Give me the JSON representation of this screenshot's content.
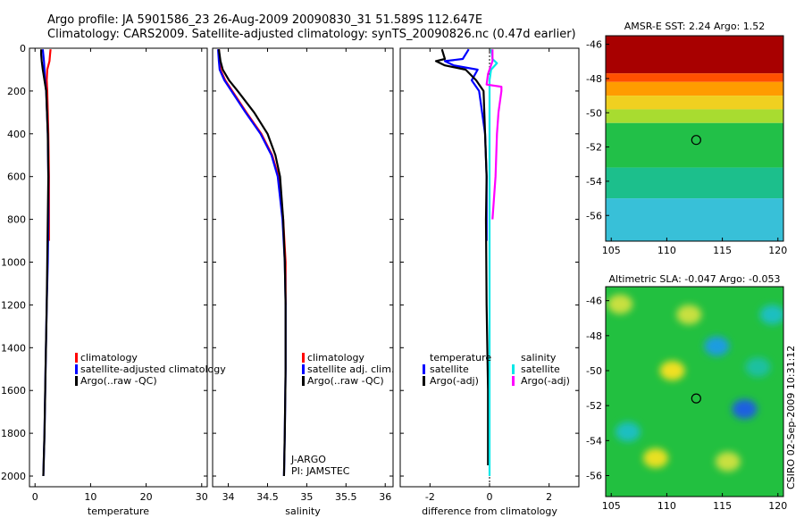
{
  "header": {
    "line1": "Argo profile: JA 5901586_23 26-Aug-2009 20090830_31 51.589S 112.647E",
    "line2": "Climatology: CARS2009. Satellite-adjusted climatology: synTS_20090826.nc (0.47d earlier)"
  },
  "footer_stamp": "CSIRO 02-Sep-2009 10:31:12",
  "colors": {
    "climatology": "#ff0000",
    "satellite": "#0000ff",
    "argo": "#000000",
    "sal_satellite": "#00e8e8",
    "sal_argo": "#ff00ff",
    "map_marker": "#000000"
  },
  "chart_data": [
    {
      "id": "temperature",
      "type": "line",
      "xlabel": "temperature",
      "ylabel": "",
      "xlim": [
        -1,
        31
      ],
      "ylim": [
        2050,
        0
      ],
      "xticks": [
        0,
        10,
        20,
        30
      ],
      "xtick_labels": [
        "0",
        "10",
        "20",
        "30"
      ],
      "yticks": [
        0,
        200,
        400,
        600,
        800,
        1000,
        1200,
        1400,
        1600,
        1800,
        2000
      ],
      "ytick_labels": [
        "0",
        "200",
        "400",
        "600",
        "800",
        "1000",
        "1200",
        "1400",
        "1600",
        "1800",
        "2000"
      ],
      "legend": {
        "position": "bottom-right",
        "entries": [
          "climatology",
          "satellite-adjusted climatology",
          "Argo(..raw -QC)"
        ]
      },
      "series": [
        {
          "name": "climatology",
          "color": "#ff0000",
          "depth": [
            5,
            30,
            60,
            100,
            150,
            200,
            300,
            400,
            600,
            800,
            900
          ],
          "values": [
            2.8,
            2.7,
            2.6,
            2.2,
            2.1,
            2.2,
            2.3,
            2.4,
            2.5,
            2.5,
            2.5
          ]
        },
        {
          "name": "satellite-adjusted climatology",
          "color": "#0000ff",
          "depth": [
            5,
            30,
            60,
            100,
            150,
            200,
            400,
            600,
            800,
            1000,
            1200,
            1500,
            1800,
            2000
          ],
          "values": [
            1.4,
            1.5,
            1.6,
            1.7,
            1.8,
            2.0,
            2.3,
            2.4,
            2.4,
            2.3,
            2.1,
            1.9,
            1.7,
            1.5
          ]
        },
        {
          "name": "Argo(..raw -QC)",
          "color": "#000000",
          "depth": [
            5,
            30,
            60,
            100,
            150,
            200,
            400,
            600,
            800,
            1000,
            1200,
            1500,
            1800,
            2000
          ],
          "values": [
            1.1,
            1.1,
            1.2,
            1.4,
            1.7,
            2.0,
            2.3,
            2.4,
            2.3,
            2.2,
            2.1,
            1.9,
            1.7,
            1.5
          ]
        }
      ]
    },
    {
      "id": "salinity",
      "type": "line",
      "xlabel": "salinity",
      "ylabel": "",
      "xlim": [
        33.8,
        36.1
      ],
      "ylim": [
        2050,
        0
      ],
      "xticks": [
        34,
        34.5,
        35,
        35.5,
        36
      ],
      "xtick_labels": [
        "34",
        "34.5",
        "35",
        "35.5",
        "36"
      ],
      "legend": {
        "position": "bottom-right",
        "entries": [
          "climatology",
          "satellite adj. clim.",
          "Argo(..raw -QC)"
        ]
      },
      "annotation": [
        "J-ARGO",
        "PI: JAMSTEC"
      ],
      "series": [
        {
          "name": "climatology",
          "color": "#ff0000",
          "depth": [
            5,
            60,
            100,
            150,
            200,
            300,
            400,
            500,
            600,
            800,
            1000,
            1200
          ],
          "values": [
            33.88,
            33.89,
            33.9,
            33.96,
            34.05,
            34.23,
            34.42,
            34.56,
            34.64,
            34.7,
            34.73,
            34.73
          ]
        },
        {
          "name": "satellite adj. clim.",
          "color": "#0000ff",
          "depth": [
            5,
            60,
            100,
            150,
            200,
            300,
            400,
            500,
            600,
            800,
            1000,
            1200,
            1500,
            1800,
            2000
          ],
          "values": [
            33.87,
            33.88,
            33.89,
            33.95,
            34.04,
            34.22,
            34.41,
            34.55,
            34.63,
            34.69,
            34.72,
            34.73,
            34.73,
            34.72,
            34.71
          ]
        },
        {
          "name": "Argo(..raw -QC)",
          "color": "#000000",
          "depth": [
            5,
            60,
            100,
            150,
            200,
            300,
            400,
            500,
            600,
            800,
            1000,
            1200,
            1500,
            1800,
            2000
          ],
          "values": [
            33.88,
            33.9,
            33.93,
            34.01,
            34.12,
            34.33,
            34.5,
            34.6,
            34.66,
            34.7,
            34.72,
            34.73,
            34.73,
            34.72,
            34.71
          ]
        }
      ]
    },
    {
      "id": "difference",
      "type": "line",
      "xlabel": "difference from climatology",
      "ylabel": "",
      "xlim": [
        -3,
        3
      ],
      "ylim": [
        2050,
        0
      ],
      "xticks": [
        -2,
        0,
        2
      ],
      "xtick_labels": [
        "-2",
        "0",
        "2"
      ],
      "legend": {
        "position": "bottom-right",
        "temperature_title": "temperature",
        "salinity_title": "salinity",
        "temperature_entries": [
          "satellite",
          "Argo(-adj)"
        ],
        "salinity_entries": [
          "satellite",
          "Argo(-adj)"
        ]
      },
      "series": [
        {
          "name": "temperature satellite",
          "color": "#0000ff",
          "depth": [
            5,
            50,
            60,
            80,
            100,
            150,
            200,
            400,
            600,
            800,
            900
          ],
          "values": [
            -0.7,
            -0.9,
            -1.5,
            -1.2,
            -0.4,
            -0.6,
            -0.35,
            -0.15,
            -0.1,
            -0.1,
            -0.1
          ]
        },
        {
          "name": "temperature Argo(-adj)",
          "color": "#000000",
          "depth": [
            5,
            50,
            60,
            80,
            100,
            150,
            200,
            400,
            600,
            800,
            1200,
            1600,
            1950
          ],
          "values": [
            -1.6,
            -1.5,
            -1.8,
            -1.5,
            -0.8,
            -0.45,
            -0.2,
            -0.15,
            -0.1,
            -0.12,
            -0.1,
            -0.05,
            -0.05
          ]
        },
        {
          "name": "salinity satellite",
          "color": "#00e8e8",
          "depth": [
            5,
            50,
            70,
            100,
            150,
            200,
            400,
            800,
            1200,
            1600,
            2000
          ],
          "values": [
            0.05,
            0.1,
            0.25,
            0.05,
            0.0,
            0.0,
            0.0,
            0.0,
            0.0,
            0.0,
            0.0
          ]
        },
        {
          "name": "salinity Argo(-adj)",
          "color": "#ff00ff",
          "depth": [
            5,
            60,
            120,
            170,
            180,
            200,
            300,
            400,
            600,
            800
          ],
          "values": [
            0.1,
            0.1,
            -0.05,
            -0.1,
            0.4,
            0.4,
            0.3,
            0.25,
            0.2,
            0.1
          ]
        }
      ]
    },
    {
      "id": "sst_map",
      "type": "heatmap",
      "title": "AMSR-E SST: 2.24 Argo: 1.52",
      "xlim": [
        104.5,
        120.5
      ],
      "ylim": [
        -57.5,
        -45.5
      ],
      "xticks": [
        105,
        110,
        115,
        120
      ],
      "xtick_labels": [
        "105",
        "110",
        "115",
        "120"
      ],
      "yticks": [
        -46,
        -48,
        -50,
        -52,
        -54,
        -56
      ],
      "ytick_labels": [
        "-46",
        "-48",
        "-50",
        "-52",
        "-54",
        "-56"
      ],
      "marker": [
        112.647,
        -51.589
      ],
      "bands": [
        {
          "lat_top": -45.5,
          "lat_bottom": -47.7,
          "color": "#a80000"
        },
        {
          "lat_top": -47.7,
          "lat_bottom": -48.2,
          "color": "#ff5000"
        },
        {
          "lat_top": -48.2,
          "lat_bottom": -49.0,
          "color": "#ff9c00"
        },
        {
          "lat_top": -49.0,
          "lat_bottom": -49.8,
          "color": "#f0d020"
        },
        {
          "lat_top": -49.8,
          "lat_bottom": -50.6,
          "color": "#a8dc30"
        },
        {
          "lat_top": -50.6,
          "lat_bottom": -53.2,
          "color": "#22c048"
        },
        {
          "lat_top": -53.2,
          "lat_bottom": -55.0,
          "color": "#1cbf8c"
        },
        {
          "lat_top": -55.0,
          "lat_bottom": -57.5,
          "color": "#38c0d8"
        }
      ]
    },
    {
      "id": "sla_map",
      "type": "heatmap",
      "title": "Altimetric SLA: -0.047 Argo: -0.053",
      "xlim": [
        104.5,
        120.5
      ],
      "ylim": [
        -57.2,
        -45.2
      ],
      "xticks": [
        105,
        110,
        115,
        120
      ],
      "xtick_labels": [
        "105",
        "110",
        "115",
        "120"
      ],
      "yticks": [
        -46,
        -48,
        -50,
        -52,
        -54,
        -56
      ],
      "ytick_labels": [
        "-46",
        "-48",
        "-50",
        "-52",
        "-54",
        "-56"
      ],
      "marker": [
        112.647,
        -51.589
      ],
      "background": "#22c040",
      "blobs": [
        {
          "lon": 110.5,
          "lat": -50.0,
          "color": "#f0e020"
        },
        {
          "lon": 105.8,
          "lat": -46.2,
          "color": "#c8e040"
        },
        {
          "lon": 112.0,
          "lat": -46.8,
          "color": "#c8e040"
        },
        {
          "lon": 114.5,
          "lat": -48.6,
          "color": "#1c9ce0"
        },
        {
          "lon": 117.0,
          "lat": -52.2,
          "color": "#1c60e0"
        },
        {
          "lon": 119.5,
          "lat": -46.8,
          "color": "#1cbfc0"
        },
        {
          "lon": 106.5,
          "lat": -53.5,
          "color": "#1cbfc0"
        },
        {
          "lon": 109.0,
          "lat": -55.0,
          "color": "#e8e020"
        },
        {
          "lon": 115.5,
          "lat": -55.2,
          "color": "#c8e040"
        },
        {
          "lon": 118.2,
          "lat": -49.8,
          "color": "#1cc0a0"
        }
      ]
    }
  ]
}
